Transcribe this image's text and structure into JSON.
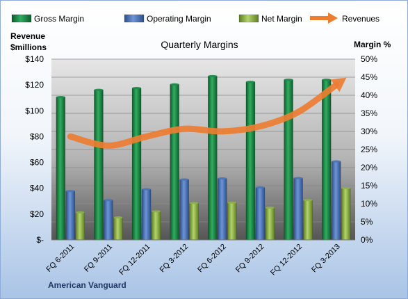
{
  "chart_data": {
    "type": "bar",
    "title": "Quarterly Margins",
    "company": "American Vanguard",
    "categories": [
      "FQ 6-2011",
      "FQ 9-2011",
      "FQ 12-2011",
      "FQ 3-2012",
      "FQ 6-2012",
      "FQ 9-2012",
      "FQ 12-2012",
      "FQ 3-2013"
    ],
    "series": [
      {
        "name": "Gross Margin",
        "type": "bar",
        "axis": "right",
        "unit": "%",
        "color": "#1e8a4a",
        "values": [
          39.5,
          41.5,
          42,
          43,
          45.3,
          43.7,
          44.3,
          44.3
        ]
      },
      {
        "name": "Operating Margin",
        "type": "bar",
        "axis": "right",
        "unit": "%",
        "color": "#4a74b8",
        "values": [
          13.5,
          11,
          14,
          16.7,
          17,
          14.5,
          17.1,
          21.7
        ]
      },
      {
        "name": "Net Margin",
        "type": "bar",
        "axis": "right",
        "unit": "%",
        "color": "#8db34a",
        "values": [
          7.6,
          6.2,
          7.9,
          10.2,
          10.3,
          8.9,
          11,
          14.3
        ]
      },
      {
        "name": "Revenues",
        "type": "line",
        "axis": "left",
        "unit": "$ millions",
        "color": "#ed7d31",
        "values": [
          80,
          73,
          80,
          86,
          84,
          88,
          99,
          120
        ]
      }
    ],
    "y_left": {
      "label_lines": [
        "Revenue",
        "$millions"
      ],
      "range": [
        0,
        140
      ],
      "ticks": [
        "$-",
        "$20",
        "$40",
        "$60",
        "$80",
        "$100",
        "$120",
        "$140"
      ]
    },
    "y_right": {
      "label": "Margin %",
      "range": [
        0,
        50
      ],
      "ticks": [
        "0%",
        "5%",
        "10%",
        "15%",
        "20%",
        "25%",
        "30%",
        "35%",
        "40%",
        "45%",
        "50%"
      ]
    },
    "legend_position": "top",
    "grid": "horizontal"
  }
}
